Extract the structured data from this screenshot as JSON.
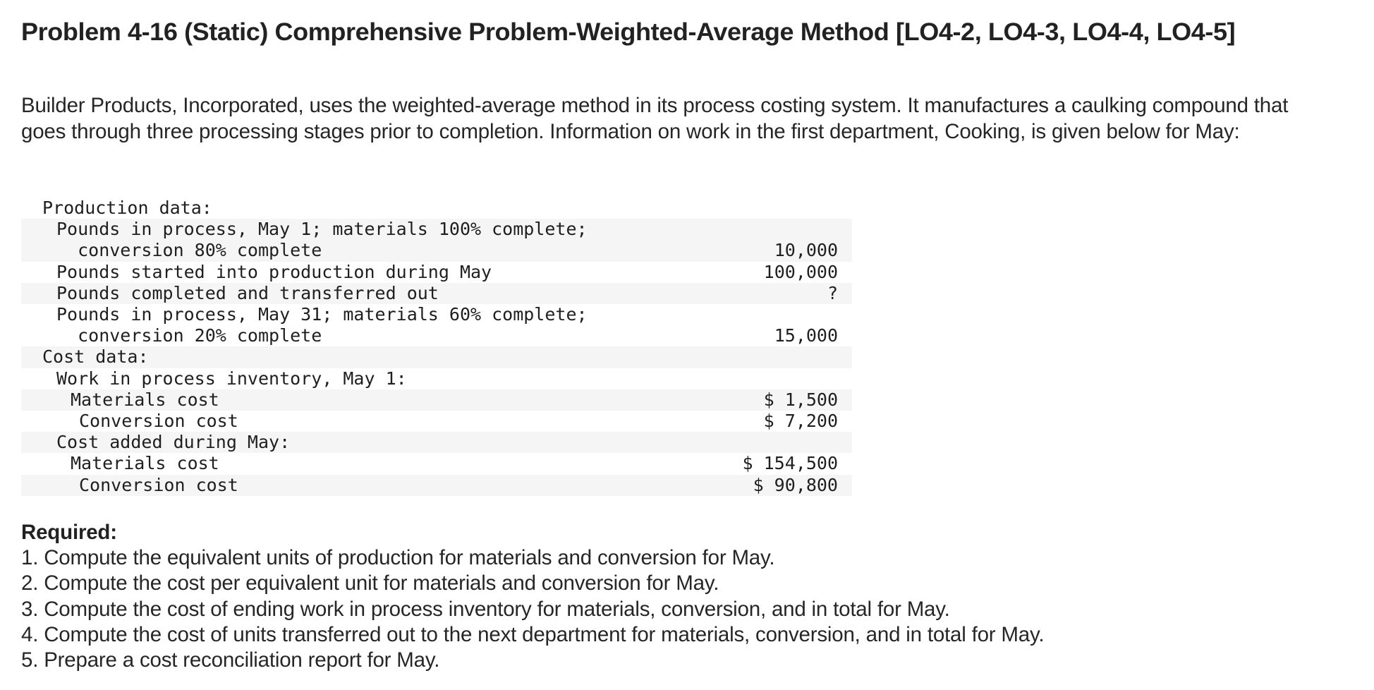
{
  "header": {
    "title": "Problem 4-16 (Static) Comprehensive Problem-Weighted-Average Method [LO4-2, LO4-3, LO4-4, LO4-5]"
  },
  "intro": {
    "text": "Builder Products, Incorporated, uses the weighted-average method in its process costing system. It manufactures a caulking compound that goes through three processing stages prior to completion. Information on work in the first department, Cooking, is given below for May:"
  },
  "table": {
    "rows": [
      {
        "lines": [
          "Production data:"
        ],
        "value": "",
        "indent": 0,
        "stripe": false
      },
      {
        "lines": [
          "Pounds in process, May 1; materials 100% complete;",
          "  conversion 80% complete"
        ],
        "value": "10,000",
        "indent": 1,
        "stripe": true
      },
      {
        "lines": [
          "Pounds started into production during May"
        ],
        "value": "100,000",
        "indent": 1,
        "stripe": false
      },
      {
        "lines": [
          "Pounds completed and transferred out"
        ],
        "value": "?",
        "indent": 1,
        "stripe": true
      },
      {
        "lines": [
          "Pounds in process, May 31; materials 60% complete;",
          "  conversion 20% complete"
        ],
        "value": "15,000",
        "indent": 1,
        "stripe": false
      },
      {
        "lines": [
          "Cost data:"
        ],
        "value": "",
        "indent": 0,
        "stripe": true
      },
      {
        "lines": [
          "Work in process inventory, May 1:"
        ],
        "value": "",
        "indent": 1,
        "stripe": false
      },
      {
        "lines": [
          "Materials cost"
        ],
        "value": "$ 1,500",
        "indent": 2,
        "stripe": true
      },
      {
        "lines": [
          "Conversion cost"
        ],
        "value": "$ 7,200",
        "indent": 2,
        "stripe": false
      },
      {
        "lines": [
          "Cost added during May:"
        ],
        "value": "",
        "indent": 1,
        "stripe": true
      },
      {
        "lines": [
          "Materials cost"
        ],
        "value": "$ 154,500",
        "indent": 2,
        "stripe": false
      },
      {
        "lines": [
          "Conversion cost"
        ],
        "value": "$ 90,800",
        "indent": 2,
        "stripe": true
      }
    ]
  },
  "required": {
    "heading": "Required:",
    "items": [
      "1. Compute the equivalent units of production for materials and conversion for May.",
      "2. Compute the cost per equivalent unit for materials and conversion for May.",
      "3. Compute the cost of ending work in process inventory for materials, conversion, and in total for May.",
      "4. Compute the cost of units transferred out to the next department for materials, conversion, and in total for May.",
      "5. Prepare a cost reconciliation report for May."
    ]
  }
}
